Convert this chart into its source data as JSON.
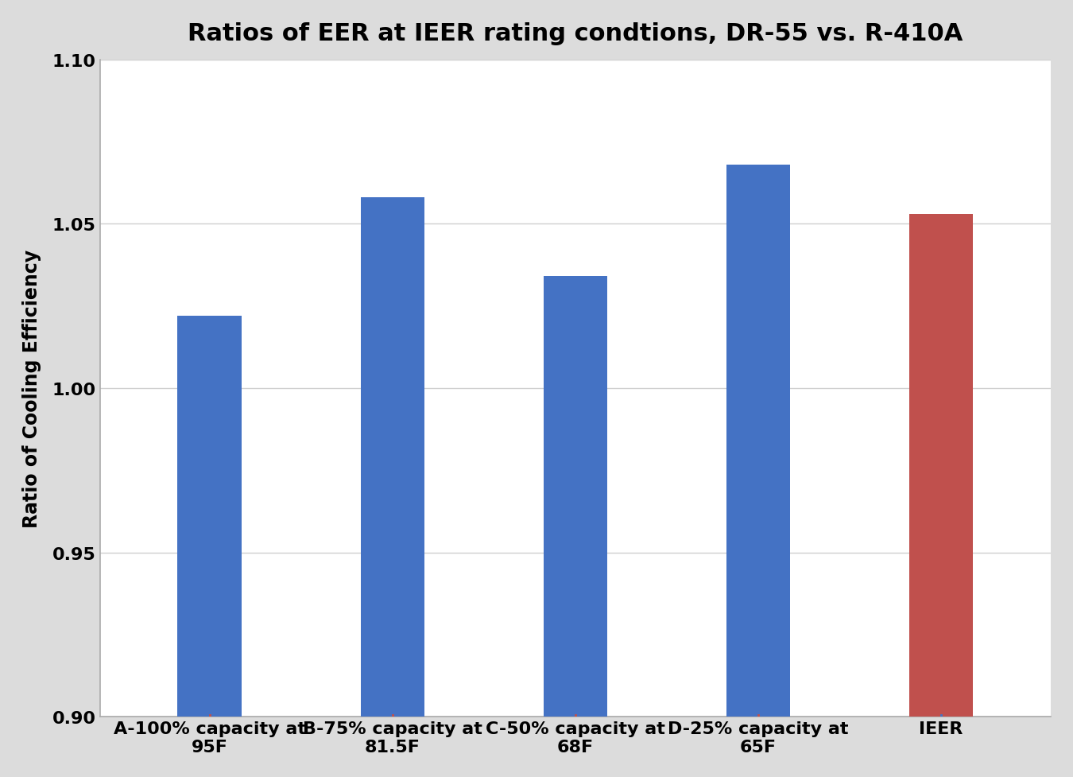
{
  "title": "Ratios of EER at IEER rating condtions, DR-55 vs. R-410A",
  "ylabel": "Ratio of Cooling Efficiency",
  "categories": [
    "A-100% capacity at\n95F",
    "B-75% capacity at\n81.5F",
    "C-50% capacity at\n68F",
    "D-25% capacity at\n65F",
    "IEER"
  ],
  "values": [
    1.022,
    1.058,
    1.034,
    1.068,
    1.053
  ],
  "bar_colors": [
    "#4472C4",
    "#4472C4",
    "#4472C4",
    "#4472C4",
    "#C0504D"
  ],
  "tick_colors": [
    "#C0504D",
    "#C0504D",
    "#C0504D",
    "#C0504D",
    "#4472C4"
  ],
  "ylim": [
    0.9,
    1.1
  ],
  "yticks": [
    0.9,
    0.95,
    1.0,
    1.05,
    1.1
  ],
  "title_fontsize": 22,
  "axis_fontsize": 17,
  "tick_fontsize": 16,
  "bar_width": 0.35,
  "background_color": "#FFFFFF",
  "plot_bg_color": "#FFFFFF",
  "grid_color": "#D0D0D0",
  "spine_color": "#AAAAAA",
  "outer_bg": "#DCDCDC"
}
